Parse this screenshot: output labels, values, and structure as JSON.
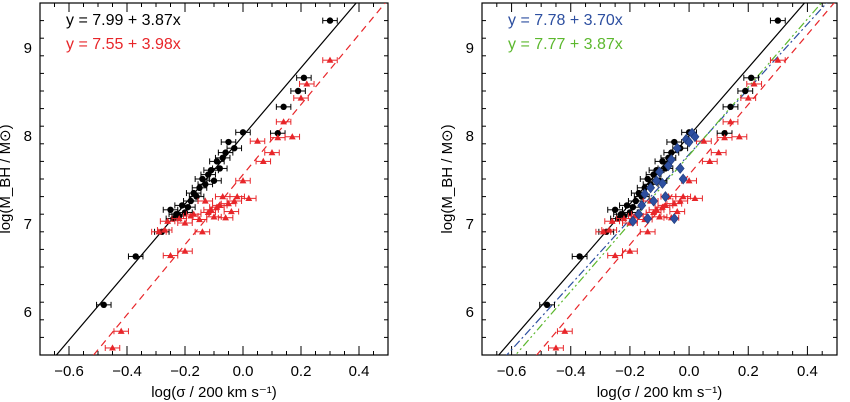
{
  "chart_data": [
    {
      "type": "scatter",
      "xlabel": "log(σ / 200 km s⁻¹)",
      "ylabel": "log(M_BH / M⊙)",
      "xlim": [
        -0.7,
        0.5
      ],
      "ylim": [
        5.5,
        9.5
      ],
      "xticks": [
        "−0.6",
        "−0.4",
        "−0.2",
        "0.0",
        "0.2",
        "0.4"
      ],
      "xtick_values": [
        -0.6,
        -0.4,
        -0.2,
        0.0,
        0.2,
        0.4
      ],
      "yticks": [
        "6",
        "7",
        "8",
        "9"
      ],
      "ytick_values": [
        6,
        7,
        8,
        9
      ],
      "annotations": [
        {
          "text": "y = 7.99 + 3.87x",
          "color": "#000000"
        },
        {
          "text": "y = 7.55 + 3.98x",
          "color": "#e8262a"
        }
      ],
      "fits": [
        {
          "intercept": 7.99,
          "slope": 3.87,
          "color": "#000000",
          "style": "solid"
        },
        {
          "intercept": 7.55,
          "slope": 3.98,
          "color": "#e8262a",
          "style": "dashed"
        }
      ],
      "series": [
        {
          "marker": "circle",
          "color": "#000000",
          "points": [
            [
              -0.48,
              6.07
            ],
            [
              -0.37,
              6.62
            ],
            [
              -0.28,
              6.9
            ],
            [
              -0.25,
              7.15
            ],
            [
              -0.24,
              7.05
            ],
            [
              -0.23,
              7.1
            ],
            [
              -0.22,
              7.08
            ],
            [
              -0.21,
              7.2
            ],
            [
              -0.2,
              7.12
            ],
            [
              -0.19,
              7.18
            ],
            [
              -0.18,
              7.25
            ],
            [
              -0.17,
              7.34
            ],
            [
              -0.16,
              7.3
            ],
            [
              -0.15,
              7.4
            ],
            [
              -0.14,
              7.5
            ],
            [
              -0.13,
              7.44
            ],
            [
              -0.12,
              7.55
            ],
            [
              -0.11,
              7.6
            ],
            [
              -0.1,
              7.48
            ],
            [
              -0.09,
              7.7
            ],
            [
              -0.08,
              7.62
            ],
            [
              -0.07,
              7.74
            ],
            [
              -0.06,
              7.8
            ],
            [
              -0.05,
              7.92
            ],
            [
              -0.03,
              7.85
            ],
            [
              0.0,
              8.03
            ],
            [
              0.12,
              8.02
            ],
            [
              0.14,
              8.32
            ],
            [
              0.19,
              8.5
            ],
            [
              0.21,
              8.65
            ],
            [
              0.3,
              9.3
            ]
          ],
          "xerr": 0.025
        },
        {
          "marker": "triangle",
          "color": "#e8262a",
          "points": [
            [
              -0.45,
              5.58
            ],
            [
              -0.42,
              5.77
            ],
            [
              -0.29,
              6.9
            ],
            [
              -0.27,
              6.92
            ],
            [
              -0.25,
              6.63
            ],
            [
              -0.2,
              6.68
            ],
            [
              -0.26,
              7.02
            ],
            [
              -0.22,
              7.05
            ],
            [
              -0.2,
              7.0
            ],
            [
              -0.18,
              7.08
            ],
            [
              -0.17,
              7.1
            ],
            [
              -0.15,
              7.04
            ],
            [
              -0.14,
              6.9
            ],
            [
              -0.13,
              7.25
            ],
            [
              -0.12,
              7.12
            ],
            [
              -0.11,
              7.15
            ],
            [
              -0.1,
              7.07
            ],
            [
              -0.09,
              7.18
            ],
            [
              -0.08,
              7.2
            ],
            [
              -0.07,
              7.3
            ],
            [
              -0.06,
              7.06
            ],
            [
              -0.05,
              7.22
            ],
            [
              -0.04,
              7.13
            ],
            [
              -0.03,
              7.25
            ],
            [
              -0.02,
              7.3
            ],
            [
              0.0,
              7.48
            ],
            [
              0.02,
              7.28
            ],
            [
              0.05,
              7.93
            ],
            [
              0.07,
              7.7
            ],
            [
              0.1,
              7.8
            ],
            [
              0.12,
              7.97
            ],
            [
              0.14,
              8.15
            ],
            [
              0.17,
              7.98
            ],
            [
              0.2,
              8.42
            ],
            [
              0.22,
              8.58
            ],
            [
              0.3,
              8.85
            ]
          ],
          "xerr": 0.025
        }
      ]
    },
    {
      "type": "scatter",
      "xlabel": "log(σ / 200 km s⁻¹)",
      "ylabel": "log(M_BH / M⊙)",
      "xlim": [
        -0.7,
        0.5
      ],
      "ylim": [
        5.5,
        9.5
      ],
      "xticks": [
        "−0.6",
        "−0.4",
        "−0.2",
        "0.0",
        "0.2",
        "0.4"
      ],
      "xtick_values": [
        -0.6,
        -0.4,
        -0.2,
        0.0,
        0.2,
        0.4
      ],
      "yticks": [
        "6",
        "7",
        "8",
        "9"
      ],
      "ytick_values": [
        6,
        7,
        8,
        9
      ],
      "annotations": [
        {
          "text": "y = 7.78 + 3.70x",
          "color": "#2d4fa0"
        },
        {
          "text": "y = 7.77 + 3.87x",
          "color": "#5cb82e"
        }
      ],
      "fits": [
        {
          "intercept": 7.99,
          "slope": 3.87,
          "color": "#000000",
          "style": "solid"
        },
        {
          "intercept": 7.55,
          "slope": 3.98,
          "color": "#e8262a",
          "style": "dashed"
        },
        {
          "intercept": 7.78,
          "slope": 3.7,
          "color": "#2d4fa0",
          "style": "dashdot"
        },
        {
          "intercept": 7.77,
          "slope": 3.87,
          "color": "#5cb82e",
          "style": "dashdotdot"
        }
      ],
      "series": [
        {
          "marker": "circle",
          "color": "#000000",
          "points": [
            [
              -0.48,
              6.07
            ],
            [
              -0.37,
              6.62
            ],
            [
              -0.28,
              6.9
            ],
            [
              -0.25,
              7.15
            ],
            [
              -0.24,
              7.05
            ],
            [
              -0.23,
              7.1
            ],
            [
              -0.22,
              7.08
            ],
            [
              -0.21,
              7.2
            ],
            [
              -0.2,
              7.12
            ],
            [
              -0.19,
              7.18
            ],
            [
              -0.18,
              7.25
            ],
            [
              -0.17,
              7.34
            ],
            [
              -0.16,
              7.3
            ],
            [
              -0.15,
              7.4
            ],
            [
              -0.14,
              7.5
            ],
            [
              -0.13,
              7.44
            ],
            [
              -0.12,
              7.55
            ],
            [
              -0.11,
              7.6
            ],
            [
              -0.1,
              7.48
            ],
            [
              -0.09,
              7.7
            ],
            [
              -0.08,
              7.62
            ],
            [
              -0.07,
              7.74
            ],
            [
              -0.06,
              7.8
            ],
            [
              -0.05,
              7.92
            ],
            [
              -0.03,
              7.85
            ],
            [
              0.0,
              8.03
            ],
            [
              0.12,
              8.02
            ],
            [
              0.14,
              8.32
            ],
            [
              0.19,
              8.5
            ],
            [
              0.21,
              8.65
            ],
            [
              0.3,
              9.3
            ]
          ],
          "xerr": 0.025
        },
        {
          "marker": "triangle",
          "color": "#e8262a",
          "points": [
            [
              -0.45,
              5.58
            ],
            [
              -0.42,
              5.77
            ],
            [
              -0.29,
              6.9
            ],
            [
              -0.27,
              6.92
            ],
            [
              -0.25,
              6.63
            ],
            [
              -0.2,
              6.68
            ],
            [
              -0.26,
              7.02
            ],
            [
              -0.22,
              7.05
            ],
            [
              -0.2,
              7.0
            ],
            [
              -0.18,
              7.08
            ],
            [
              -0.17,
              7.1
            ],
            [
              -0.15,
              7.04
            ],
            [
              -0.14,
              6.9
            ],
            [
              -0.13,
              7.25
            ],
            [
              -0.12,
              7.12
            ],
            [
              -0.11,
              7.15
            ],
            [
              -0.1,
              7.07
            ],
            [
              -0.09,
              7.18
            ],
            [
              -0.08,
              7.2
            ],
            [
              -0.07,
              7.3
            ],
            [
              -0.06,
              7.06
            ],
            [
              -0.05,
              7.22
            ],
            [
              -0.04,
              7.13
            ],
            [
              -0.03,
              7.25
            ],
            [
              -0.02,
              7.3
            ],
            [
              0.0,
              7.48
            ],
            [
              0.02,
              7.28
            ],
            [
              0.05,
              7.93
            ],
            [
              0.07,
              7.7
            ],
            [
              0.1,
              7.8
            ],
            [
              0.12,
              7.97
            ],
            [
              0.14,
              8.15
            ],
            [
              0.17,
              7.98
            ],
            [
              0.2,
              8.42
            ],
            [
              0.22,
              8.58
            ],
            [
              0.3,
              8.85
            ]
          ],
          "xerr": 0.025
        },
        {
          "marker": "diamond",
          "color": "#2d4fa0",
          "points": [
            [
              -0.19,
              7.02
            ],
            [
              -0.17,
              7.1
            ],
            [
              -0.16,
              7.2
            ],
            [
              -0.15,
              7.33
            ],
            [
              -0.14,
              7.05
            ],
            [
              -0.13,
              7.4
            ],
            [
              -0.12,
              7.25
            ],
            [
              -0.11,
              7.48
            ],
            [
              -0.1,
              7.58
            ],
            [
              -0.09,
              7.45
            ],
            [
              -0.08,
              7.3
            ],
            [
              -0.07,
              7.65
            ],
            [
              -0.06,
              7.72
            ],
            [
              -0.05,
              7.05
            ],
            [
              -0.04,
              7.85
            ],
            [
              -0.03,
              7.62
            ],
            [
              -0.02,
              7.5
            ],
            [
              -0.01,
              7.95
            ],
            [
              0.0,
              7.92
            ],
            [
              0.01,
              8.02
            ],
            [
              0.02,
              7.98
            ]
          ],
          "xerr": 0.0
        }
      ]
    }
  ]
}
